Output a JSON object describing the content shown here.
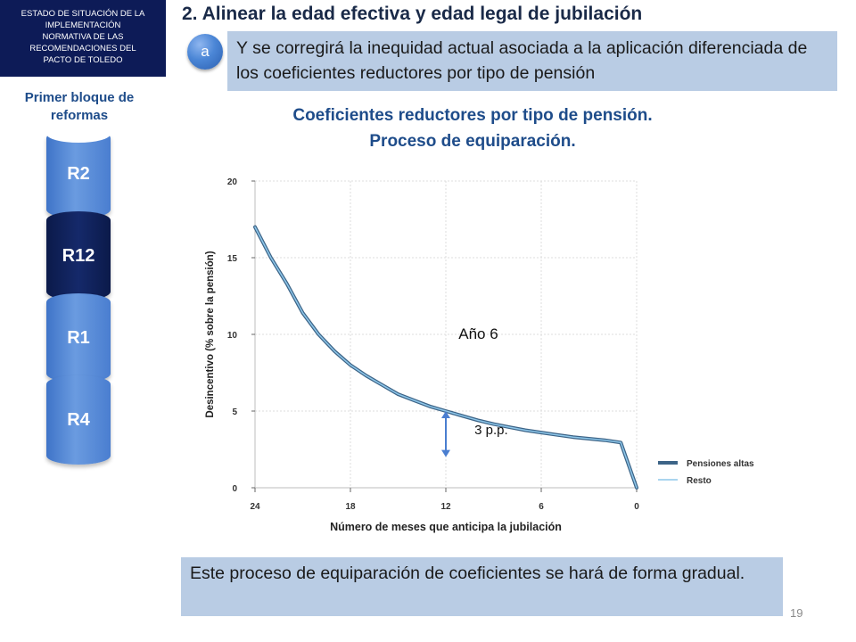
{
  "header": {
    "box_lines": [
      "ESTADO DE SITUACIÓN DE LA",
      "IMPLEMENTACIÓN",
      "NORMATIVA DE LAS",
      "RECOMENDACIONES DEL",
      "PACTO DE TOLEDO"
    ],
    "title": "2. Alinear la edad efectiva y edad legal de jubilación"
  },
  "intro": {
    "badge": "a",
    "text": "Y se corregirá la inequidad actual asociada a la aplicación diferenciada de los coeficientes reductores por tipo de pensión"
  },
  "sidebar": {
    "title_line1": "Primer bloque de",
    "title_line2": "reformas",
    "items": [
      {
        "label": "R2",
        "style": "light"
      },
      {
        "label": "R12",
        "style": "dark"
      },
      {
        "label": "R1",
        "style": "light"
      },
      {
        "label": "R4",
        "style": "light"
      }
    ]
  },
  "chart_title": {
    "line1": "Coeficientes reductores por tipo de pensión.",
    "line2": "Proceso de equiparación."
  },
  "chart_data": {
    "type": "line",
    "title": "",
    "xlabel": "Número de meses que anticipa la jubilación",
    "ylabel": "Desincentivo (% sobre la pensión)",
    "xlim": [
      24,
      0
    ],
    "ylim": [
      0,
      20
    ],
    "x_ticks": [
      24,
      18,
      12,
      6,
      0
    ],
    "y_ticks": [
      0,
      5,
      10,
      15,
      20
    ],
    "grid": true,
    "legend_position": "bottom-right",
    "series": [
      {
        "name": "Pensiones altas",
        "color": "#3d6487",
        "x": [
          24,
          23,
          22,
          21,
          20,
          19,
          18,
          17,
          16,
          15,
          14,
          13,
          12,
          11,
          10,
          9,
          8,
          7,
          6,
          5,
          4,
          3,
          2,
          1,
          0
        ],
        "y": [
          17.0,
          15.0,
          13.3,
          11.4,
          10.0,
          8.9,
          8.0,
          7.3,
          6.7,
          6.1,
          5.7,
          5.3,
          5.0,
          4.7,
          4.4,
          4.15,
          3.95,
          3.75,
          3.6,
          3.45,
          3.3,
          3.2,
          3.1,
          2.95,
          0.0
        ]
      },
      {
        "name": "Resto",
        "color": "#8ec7ea",
        "x": [
          24,
          23,
          22,
          21,
          20,
          19,
          18,
          17,
          16,
          15,
          14,
          13,
          12,
          11,
          10,
          9,
          8,
          7,
          6,
          5,
          4,
          3,
          2,
          1,
          0
        ],
        "y": [
          17.0,
          15.0,
          13.3,
          11.4,
          10.0,
          8.9,
          8.0,
          7.3,
          6.7,
          6.1,
          5.7,
          5.3,
          5.0,
          4.7,
          4.4,
          4.15,
          3.95,
          3.75,
          3.6,
          3.45,
          3.3,
          3.2,
          3.1,
          2.95,
          0.0
        ]
      }
    ],
    "annotations": [
      {
        "text": "Año 6",
        "x": 11.2,
        "y": 9.7
      },
      {
        "text": "3 p.p.",
        "x": 10.2,
        "y": 3.5
      }
    ],
    "gap_arrow": {
      "x": 12,
      "y_from": 5.0,
      "y_to": 2.0,
      "color": "#4a7ed0"
    }
  },
  "footer": {
    "text": "Este proceso de equiparación de coeficientes se hará de forma gradual."
  },
  "page_number": "19"
}
